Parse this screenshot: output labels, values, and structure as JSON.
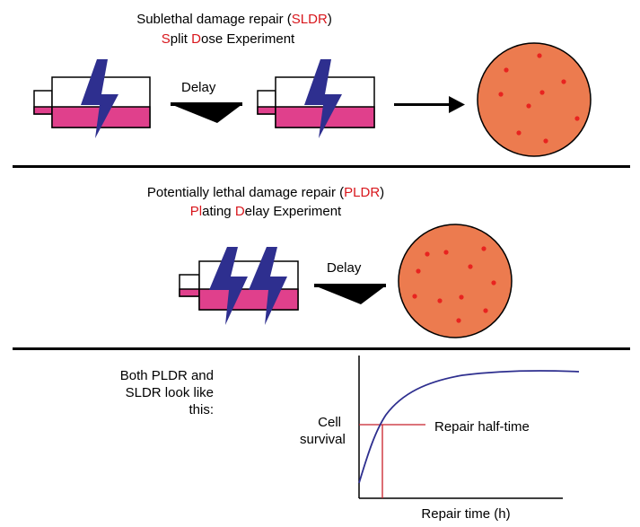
{
  "sldr": {
    "title": "Sublethal damage repair (SLDR)",
    "title_parts": [
      "Sublethal damage repair (",
      "SLDR",
      ")"
    ],
    "subtitle_parts": [
      "S",
      "plit ",
      "D",
      "ose Experiment"
    ],
    "delay_label": "Delay"
  },
  "pldr": {
    "title_parts": [
      "Potentially lethal damage repair (",
      "PLDR",
      ")"
    ],
    "subtitle_parts": [
      "Pl",
      "ating ",
      "D",
      "elay Experiment"
    ],
    "delay_label": "Delay"
  },
  "graph": {
    "caption_lines": [
      "Both PLDR and",
      "SLDR look like",
      "this:"
    ],
    "ylabel_lines": [
      "Cell",
      "survival"
    ],
    "xlabel": "Repair time (h)",
    "annotation": "Repair half-time"
  },
  "colors": {
    "flask_fill": "#e0408c",
    "lightning": "#2e2f8f",
    "dish": "#ec7b4f",
    "colony": "#e8231f",
    "accent_text": "#d8161c",
    "curve": "#2e2f8f",
    "halftime_line": "#c8202a"
  },
  "icons": [
    "flask-icon",
    "lightning-bolt-icon",
    "petri-dish-icon",
    "arrow-icon"
  ]
}
